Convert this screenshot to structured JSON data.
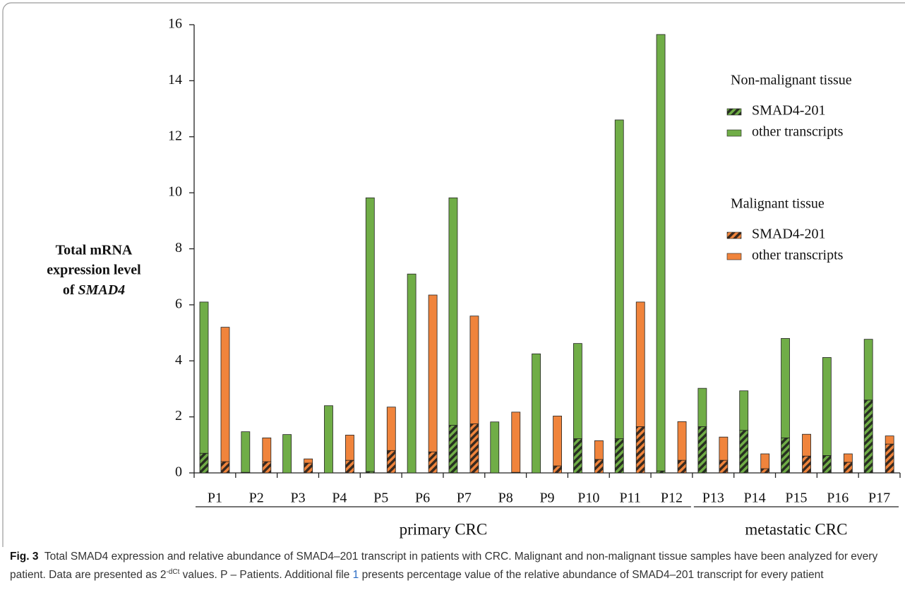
{
  "chart_data": {
    "type": "stacked-bar",
    "y_label": [
      "Total mRNA",
      "expression level",
      "of",
      "SMAD4"
    ],
    "ylim": [
      0,
      16
    ],
    "yticks": [
      0,
      2,
      4,
      6,
      8,
      10,
      12,
      14,
      16
    ],
    "categories": [
      "P1",
      "P2",
      "P3",
      "P4",
      "P5",
      "P6",
      "P7",
      "P8",
      "P9",
      "P10",
      "P11",
      "P12",
      "P13",
      "P14",
      "P15",
      "P16",
      "P17"
    ],
    "category_groups": [
      {
        "label": "primary CRC",
        "from": 0,
        "to": 11
      },
      {
        "label": "metastatic CRC",
        "from": 12,
        "to": 16
      }
    ],
    "legend_groups": [
      "Non-malignant tissue",
      "Malignant tissue"
    ],
    "series": [
      {
        "name": "SMAD4-201",
        "color": "#70ad47",
        "hatched": true,
        "stack": 0,
        "values": [
          0.7,
          0.02,
          0,
          0,
          0.05,
          0,
          1.7,
          0,
          0,
          1.22,
          1.22,
          0.07,
          1.65,
          1.52,
          1.25,
          0.62,
          2.6
        ]
      },
      {
        "name": "other transcripts",
        "color": "#70ad47",
        "hatched": false,
        "stack": 0,
        "values": [
          5.4,
          1.45,
          1.37,
          2.4,
          9.77,
          7.1,
          8.12,
          1.82,
          4.25,
          3.4,
          11.38,
          15.58,
          1.37,
          1.41,
          3.55,
          3.5,
          2.17
        ]
      },
      {
        "name": "SMAD4-201",
        "color": "#f0843c",
        "hatched": true,
        "stack": 1,
        "values": [
          0.4,
          0.4,
          0.35,
          0.45,
          0.8,
          0.75,
          1.75,
          0.02,
          0.25,
          0.48,
          1.65,
          0.45,
          0.45,
          0.15,
          0.6,
          0.38,
          1.03
        ]
      },
      {
        "name": "other transcripts",
        "color": "#f0843c",
        "hatched": false,
        "stack": 1,
        "values": [
          4.8,
          0.85,
          0.15,
          0.9,
          1.55,
          5.6,
          3.85,
          2.15,
          1.78,
          0.67,
          4.45,
          1.38,
          0.83,
          0.53,
          0.78,
          0.3,
          0.29
        ]
      }
    ]
  },
  "caption": {
    "label": "Fig. 3",
    "text1": "Total SMAD4 expression and relative abundance of SMAD4–201 transcript in patients with CRC. Malignant and non-malignant tissue samples have been analyzed for every patient. Data are presented as 2",
    "superscript": "-dCt",
    "text2": "values. P – Patients. Additional file",
    "link": "1",
    "text3": "presents percentage value of the relative abundance of SMAD4–201 transcript for every patient"
  }
}
